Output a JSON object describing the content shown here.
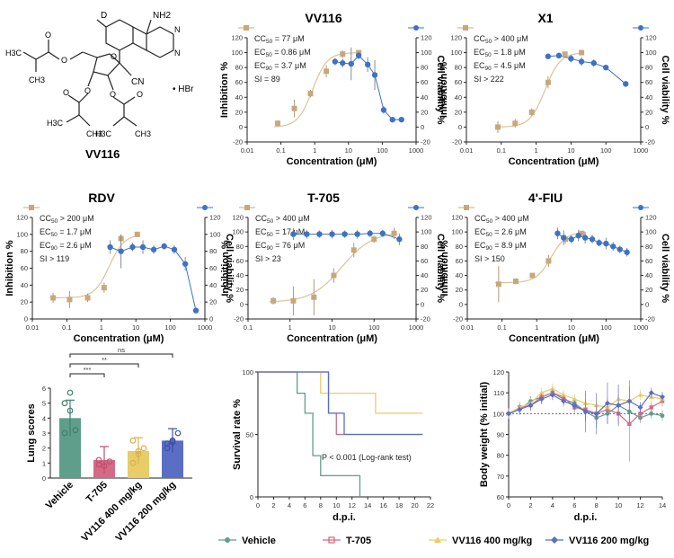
{
  "compound": {
    "name": "VV116",
    "labels": [
      "D",
      "NH2",
      "N",
      "N",
      "O",
      "O",
      "O",
      "O",
      "O",
      "O",
      "O",
      "CN",
      "• HBr",
      "H3C",
      "CH3",
      "H3C",
      "CH3",
      "H3C",
      "CH3"
    ]
  },
  "colors": {
    "inhibition": "#c8a87a",
    "inhibition_fit": "#d8c49a",
    "viability": "#3e72c4",
    "viability_fit": "#3e72c4"
  },
  "dose_panels": [
    {
      "title": "VV116",
      "ylabel_left": "Inhibition %",
      "ylabel_right": "Cell viability %",
      "xlabel": "Concentration (μM)",
      "xticks": [
        "0.01",
        "0.1",
        "1",
        "10",
        "100",
        "1000"
      ],
      "yticks": [
        "-20",
        "0",
        "20",
        "40",
        "60",
        "80",
        "100",
        "120"
      ],
      "annotations": [
        "CC50 = 77 μM",
        "EC50 = 0.86 μM",
        "EC90 = 3.7 μM",
        "SI = 89"
      ]
    },
    {
      "title": "X1",
      "ylabel_left": "Inhibition %",
      "ylabel_right": "Cell viability %",
      "xlabel": "Concentration (μM)",
      "xticks": [
        "0.01",
        "0.1",
        "1",
        "10",
        "100",
        "1000"
      ],
      "yticks": [
        "-20",
        "0",
        "20",
        "40",
        "60",
        "80",
        "100",
        "120"
      ],
      "annotations": [
        "CC50 > 400 μM",
        "EC50 = 1.8 μM",
        "EC90 = 4.5 μM",
        "SI > 222"
      ]
    },
    {
      "title": "RDV",
      "ylabel_left": "Inhibition %",
      "ylabel_right": "Cell viability %",
      "xlabel": "Concentration (μM)",
      "xticks": [
        "0.01",
        "0.1",
        "1",
        "10",
        "100",
        "1000"
      ],
      "yticks": [
        "0",
        "20",
        "40",
        "60",
        "80",
        "100",
        "120"
      ],
      "annotations": [
        "CC50 > 200 μM",
        "EC50 = 1.7 μM",
        "EC90 = 2.6 μM",
        "SI > 119"
      ]
    },
    {
      "title": "T-705",
      "ylabel_left": "Inhibition %",
      "ylabel_right": "Cell viability %",
      "xlabel": "Concentration (μM)",
      "xticks": [
        "0.1",
        "1",
        "10",
        "100",
        "1000"
      ],
      "yticks": [
        "-20",
        "0",
        "20",
        "40",
        "60",
        "80",
        "100",
        "120"
      ],
      "annotations": [
        "CC50 > 400 μM",
        "EC50 = 17 μM",
        "EC90 = 76 μM",
        "SI > 23"
      ]
    },
    {
      "title": "4'-FIU",
      "ylabel_left": "Inhibition %",
      "ylabel_right": "Cell viability %",
      "xlabel": "Concentration (μM)",
      "xticks": [
        "0.01",
        "0.1",
        "1",
        "10",
        "100",
        "1000"
      ],
      "yticks": [
        "-20",
        "0",
        "20",
        "40",
        "60",
        "80",
        "100",
        "120"
      ],
      "annotations": [
        "CC50 > 400 μM",
        "EC50 = 2.6 μM",
        "EC90 = 8.9 μM",
        "SI > 150"
      ]
    }
  ],
  "lung": {
    "ylabel": "Lung scores",
    "yticks": [
      "0",
      "1",
      "2",
      "3",
      "4",
      "5",
      "6"
    ],
    "categories": [
      "Vehicle",
      "T-705",
      "VV116 400 mg/kg",
      "VV116 200 mg/kg"
    ],
    "sig": [
      "***",
      "**",
      "ns"
    ]
  },
  "survival": {
    "ylabel": "Survival rate %",
    "xlabel": "d.p.i.",
    "xticks": [
      "0",
      "2",
      "4",
      "6",
      "8",
      "10",
      "12",
      "14",
      "16",
      "18",
      "20",
      "22"
    ],
    "yticks": [
      "0",
      "50",
      "100"
    ],
    "annotation": "P < 0.001 (Log-rank test)"
  },
  "bodyweight": {
    "ylabel": "Body weight (% initial)",
    "xlabel": "d.p.i.",
    "xticks": [
      "0",
      "2",
      "4",
      "6",
      "8",
      "10",
      "12",
      "14"
    ],
    "yticks": [
      "60",
      "70",
      "80",
      "90",
      "100",
      "110",
      "120"
    ]
  },
  "legend": [
    "Vehicle",
    "T-705",
    "VV116 400 mg/kg",
    "VV116 200 mg/kg"
  ],
  "chart_data": [
    {
      "type": "scatter",
      "title": "VV116",
      "xscale": "log",
      "xlim": [
        0.01,
        1000
      ],
      "ylim": [
        -20,
        120
      ],
      "series": [
        {
          "name": "Inhibition",
          "x": [
            0.08,
            0.25,
            0.75,
            2.2,
            6.7,
            20
          ],
          "y": [
            5,
            25,
            45,
            75,
            98,
            100
          ],
          "err": [
            4,
            12,
            5,
            8,
            5,
            3
          ]
        },
        {
          "name": "Cell viability",
          "x": [
            4,
            6.7,
            12,
            20,
            37,
            60,
            110,
            200,
            370
          ],
          "y": [
            88,
            86,
            85,
            96,
            84,
            70,
            23,
            10,
            10
          ],
          "err": [
            5,
            6,
            22,
            5,
            10,
            20,
            5,
            2,
            2
          ]
        }
      ]
    },
    {
      "type": "scatter",
      "title": "X1",
      "xscale": "log",
      "xlim": [
        0.01,
        1000
      ],
      "ylim": [
        -20,
        120
      ],
      "series": [
        {
          "name": "Inhibition",
          "x": [
            0.08,
            0.25,
            0.75,
            2.2,
            6.7,
            20
          ],
          "y": [
            0,
            5,
            20,
            60,
            98,
            100
          ],
          "err": [
            8,
            6,
            5,
            8,
            3,
            2
          ]
        },
        {
          "name": "Cell viability",
          "x": [
            2.2,
            4.5,
            10,
            20,
            45,
            100,
            370
          ],
          "y": [
            95,
            96,
            92,
            88,
            86,
            80,
            58
          ],
          "err": [
            3,
            4,
            5,
            6,
            5,
            3,
            3
          ]
        }
      ]
    },
    {
      "type": "scatter",
      "title": "RDV",
      "xscale": "log",
      "xlim": [
        0.01,
        1000
      ],
      "ylim": [
        0,
        120
      ],
      "series": [
        {
          "name": "Inhibition",
          "x": [
            0.04,
            0.12,
            0.4,
            1.2,
            3.7,
            11
          ],
          "y": [
            25,
            23,
            25,
            37,
            95,
            100
          ],
          "err": [
            6,
            10,
            5,
            6,
            4,
            2
          ]
        },
        {
          "name": "Cell viability",
          "x": [
            1.8,
            3.7,
            8,
            16,
            33,
            66,
            130,
            270,
            550
          ],
          "y": [
            85,
            80,
            85,
            85,
            82,
            86,
            82,
            65,
            10
          ],
          "err": [
            8,
            20,
            5,
            8,
            5,
            4,
            5,
            8,
            2
          ]
        }
      ]
    },
    {
      "type": "scatter",
      "title": "T-705",
      "xscale": "log",
      "xlim": [
        0.1,
        1000
      ],
      "ylim": [
        -20,
        120
      ],
      "series": [
        {
          "name": "Inhibition",
          "x": [
            0.4,
            1.2,
            3.7,
            11,
            33,
            100,
            300
          ],
          "y": [
            5,
            5,
            10,
            40,
            75,
            90,
            98
          ],
          "err": [
            5,
            20,
            25,
            10,
            10,
            5,
            8
          ]
        },
        {
          "name": "Cell viability",
          "x": [
            1.2,
            2.5,
            5,
            10,
            20,
            40,
            80,
            160,
            400
          ],
          "y": [
            97,
            97,
            97,
            97,
            97,
            97,
            98,
            98,
            90
          ],
          "err": [
            8,
            6,
            5,
            6,
            5,
            6,
            5,
            5,
            8
          ]
        }
      ]
    },
    {
      "type": "scatter",
      "title": "4'-FIU",
      "xscale": "log",
      "xlim": [
        0.01,
        1000
      ],
      "ylim": [
        -20,
        120
      ],
      "series": [
        {
          "name": "Inhibition",
          "x": [
            0.08,
            0.25,
            0.75,
            2.2,
            6.7,
            20
          ],
          "y": [
            28,
            32,
            40,
            60,
            90,
            98
          ],
          "err": [
            25,
            4,
            3,
            8,
            6,
            3
          ]
        },
        {
          "name": "Cell viability",
          "x": [
            4,
            6,
            10,
            16,
            25,
            40,
            63,
            100,
            160,
            250,
            400
          ],
          "y": [
            98,
            92,
            90,
            95,
            92,
            90,
            85,
            84,
            80,
            76,
            72
          ],
          "err": [
            8,
            10,
            6,
            8,
            8,
            6,
            5,
            8,
            6,
            5,
            6
          ]
        }
      ]
    },
    {
      "type": "bar",
      "title": "",
      "ylabel": "Lung scores",
      "ylim": [
        0,
        6
      ],
      "categories": [
        "Vehicle",
        "T-705",
        "VV116 400 mg/kg",
        "VV116 200 mg/kg"
      ],
      "values": [
        4.0,
        1.2,
        1.8,
        2.5
      ],
      "err": [
        1.2,
        0.9,
        0.9,
        0.8
      ],
      "points": [
        [
          5.0,
          4.5,
          3.2,
          3.0,
          5.7
        ],
        [
          0.9,
          0.8,
          1.1,
          1.2
        ],
        [
          1.0,
          1.8,
          2.0,
          2.5,
          1.6
        ],
        [
          2.0,
          2.5,
          3.0,
          2.3,
          2.4
        ]
      ]
    },
    {
      "type": "line",
      "title": "",
      "ylabel": "Survival rate %",
      "xlabel": "d.p.i.",
      "xlim": [
        0,
        22
      ],
      "ylim": [
        0,
        100
      ],
      "series": [
        {
          "name": "Vehicle",
          "x": [
            0,
            5,
            6,
            7,
            8,
            13
          ],
          "y": [
            100,
            83,
            67,
            33,
            17,
            0
          ]
        },
        {
          "name": "T-705",
          "x": [
            0,
            9,
            10,
            21
          ],
          "y": [
            100,
            67,
            50,
            50
          ]
        },
        {
          "name": "VV116 400 mg/kg",
          "x": [
            0,
            8,
            15,
            21
          ],
          "y": [
            100,
            83,
            67,
            67
          ]
        },
        {
          "name": "VV116 200 mg/kg",
          "x": [
            0,
            9,
            11,
            21
          ],
          "y": [
            100,
            67,
            50,
            50
          ]
        }
      ]
    },
    {
      "type": "line",
      "title": "",
      "ylabel": "Body weight (% initial)",
      "xlabel": "d.p.i.",
      "xlim": [
        0,
        14
      ],
      "ylim": [
        60,
        120
      ],
      "series": [
        {
          "name": "Vehicle",
          "x": [
            0,
            1,
            2,
            3,
            4,
            5,
            6,
            7,
            8,
            9,
            10,
            11,
            12,
            13,
            14
          ],
          "y": [
            100,
            102,
            106,
            108,
            110,
            107,
            105,
            101,
            98,
            100,
            104,
            101,
            98,
            100,
            99
          ]
        },
        {
          "name": "T-705",
          "x": [
            0,
            1,
            2,
            3,
            4,
            5,
            6,
            7,
            8,
            9,
            10,
            11,
            12,
            13,
            14
          ],
          "y": [
            100,
            103,
            104,
            108,
            110,
            108,
            103,
            102,
            100,
            102,
            100,
            95,
            100,
            103,
            106
          ]
        },
        {
          "name": "VV116 400 mg/kg",
          "x": [
            0,
            1,
            2,
            3,
            4,
            5,
            6,
            7,
            8,
            9,
            10,
            11,
            12,
            13,
            14
          ],
          "y": [
            100,
            103,
            105,
            110,
            112,
            109,
            107,
            105,
            104,
            103,
            107,
            106,
            109,
            108,
            107
          ]
        },
        {
          "name": "VV116 200 mg/kg",
          "x": [
            0,
            1,
            2,
            3,
            4,
            5,
            6,
            7,
            8,
            9,
            10,
            11,
            12,
            13,
            14
          ],
          "y": [
            100,
            102,
            104,
            107,
            109,
            106,
            104,
            101,
            100,
            105,
            104,
            106,
            103,
            110,
            108
          ]
        }
      ]
    }
  ]
}
